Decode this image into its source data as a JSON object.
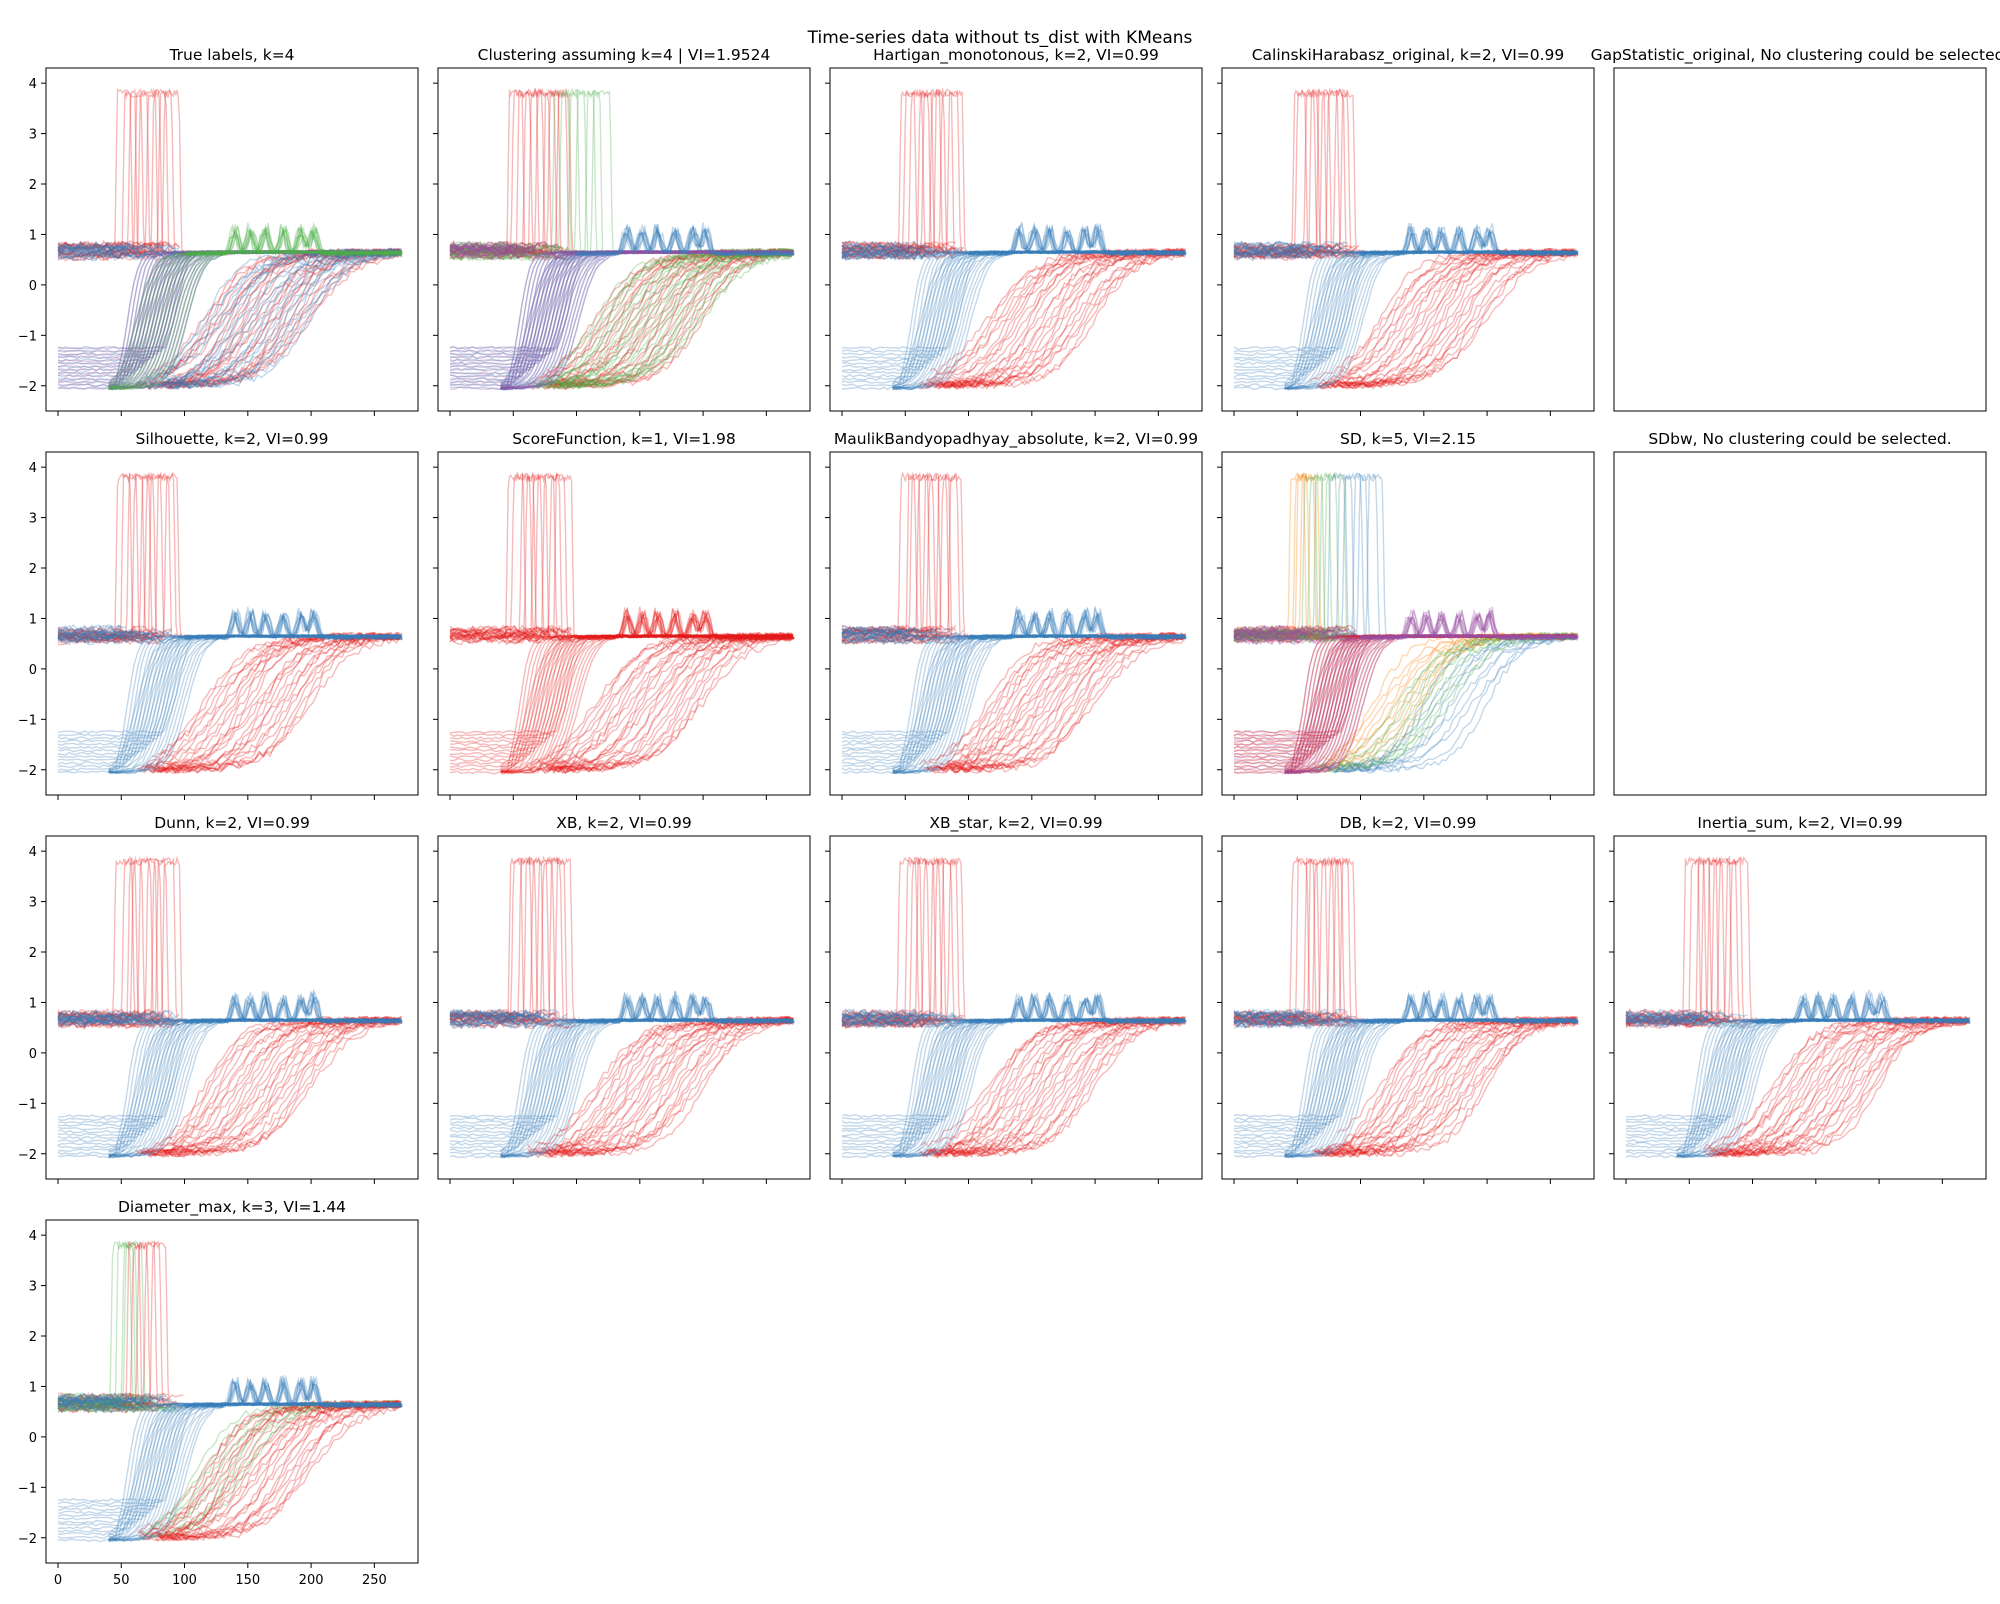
{
  "figure": {
    "suptitle": "Time-series data without ts_dist with KMeans"
  },
  "colors": {
    "red": "#e41a1c",
    "blue": "#377eb8",
    "green": "#4daf4a",
    "purple": "#984ea3",
    "orange": "#ff7f00"
  },
  "chart_data": [
    {
      "type": "line",
      "title": "True labels, k=4",
      "xlim": [
        0,
        275
      ],
      "ylim": [
        -2.5,
        4.3
      ],
      "xticks": [
        "0",
        "50",
        "100",
        "150",
        "200",
        "250"
      ],
      "yticks": [
        "-2",
        "-1",
        "0",
        "1",
        "2",
        "3",
        "4"
      ],
      "show_ylabels": true,
      "show_xlabels": false,
      "series": [
        {
          "role": "flat",
          "color": "red"
        },
        {
          "role": "spikes",
          "color": "red"
        },
        {
          "role": "slow",
          "color": "red"
        },
        {
          "role": "slow",
          "color": "blue"
        },
        {
          "role": "steps",
          "color": "blue"
        },
        {
          "role": "steps",
          "color": "purple"
        },
        {
          "role": "fast",
          "color": "blue"
        },
        {
          "role": "fast",
          "color": "purple"
        },
        {
          "role": "fast",
          "color": "green"
        },
        {
          "role": "flat",
          "color": "blue"
        },
        {
          "role": "bumps",
          "color": "green"
        }
      ]
    },
    {
      "type": "line",
      "title": "Clustering assuming k=4 | VI=1.9524",
      "xlim": [
        0,
        275
      ],
      "ylim": [
        -2.5,
        4.3
      ],
      "xticks": [
        "0",
        "50",
        "100",
        "150",
        "200",
        "250"
      ],
      "yticks": [
        "-2",
        "-1",
        "0",
        "1",
        "2",
        "3",
        "4"
      ],
      "show_ylabels": false,
      "show_xlabels": false,
      "series": [
        {
          "role": "flat",
          "color": "red"
        },
        {
          "role": "flat",
          "color": "green"
        },
        {
          "role": "spikes",
          "color": "red"
        },
        {
          "role": "spikes2",
          "color": "green"
        },
        {
          "role": "slow",
          "color": "red"
        },
        {
          "role": "slow",
          "color": "green"
        },
        {
          "role": "steps",
          "color": "blue"
        },
        {
          "role": "steps",
          "color": "purple"
        },
        {
          "role": "fast",
          "color": "blue"
        },
        {
          "role": "fast",
          "color": "purple"
        },
        {
          "role": "flat",
          "color": "purple"
        },
        {
          "role": "bumps",
          "color": "blue"
        }
      ]
    },
    {
      "type": "line",
      "title": "Hartigan_monotonous, k=2, VI=0.99",
      "xlim": [
        0,
        275
      ],
      "ylim": [
        -2.5,
        4.3
      ],
      "xticks": [
        "0",
        "50",
        "100",
        "150",
        "200",
        "250"
      ],
      "yticks": [
        "-2",
        "-1",
        "0",
        "1",
        "2",
        "3",
        "4"
      ],
      "show_ylabels": false,
      "show_xlabels": false,
      "series": [
        {
          "role": "flat",
          "color": "red"
        },
        {
          "role": "spikes",
          "color": "red"
        },
        {
          "role": "slow",
          "color": "red"
        },
        {
          "role": "steps",
          "color": "blue"
        },
        {
          "role": "fast",
          "color": "blue"
        },
        {
          "role": "flat",
          "color": "blue"
        },
        {
          "role": "bumps",
          "color": "blue"
        }
      ]
    },
    {
      "type": "line",
      "title": "CalinskiHarabasz_original, k=2, VI=0.99",
      "xlim": [
        0,
        275
      ],
      "ylim": [
        -2.5,
        4.3
      ],
      "xticks": [
        "0",
        "50",
        "100",
        "150",
        "200",
        "250"
      ],
      "yticks": [
        "-2",
        "-1",
        "0",
        "1",
        "2",
        "3",
        "4"
      ],
      "show_ylabels": false,
      "show_xlabels": false,
      "series": [
        {
          "role": "flat",
          "color": "red"
        },
        {
          "role": "spikes",
          "color": "red"
        },
        {
          "role": "slow",
          "color": "red"
        },
        {
          "role": "steps",
          "color": "blue"
        },
        {
          "role": "fast",
          "color": "blue"
        },
        {
          "role": "flat",
          "color": "blue"
        },
        {
          "role": "bumps",
          "color": "blue"
        }
      ]
    },
    {
      "type": "line",
      "title": "GapStatistic_original, No clustering could be selected.",
      "empty": true,
      "series": []
    },
    {
      "type": "line",
      "title": "Silhouette, k=2, VI=0.99",
      "xlim": [
        0,
        275
      ],
      "ylim": [
        -2.5,
        4.3
      ],
      "xticks": [
        "0",
        "50",
        "100",
        "150",
        "200",
        "250"
      ],
      "yticks": [
        "-2",
        "-1",
        "0",
        "1",
        "2",
        "3",
        "4"
      ],
      "show_ylabels": true,
      "show_xlabels": false,
      "series": [
        {
          "role": "flat",
          "color": "red"
        },
        {
          "role": "spikes",
          "color": "red"
        },
        {
          "role": "slow",
          "color": "red"
        },
        {
          "role": "steps",
          "color": "blue"
        },
        {
          "role": "fast",
          "color": "blue"
        },
        {
          "role": "flat",
          "color": "blue"
        },
        {
          "role": "bumps",
          "color": "blue"
        }
      ]
    },
    {
      "type": "line",
      "title": "ScoreFunction, k=1, VI=1.98",
      "xlim": [
        0,
        275
      ],
      "ylim": [
        -2.5,
        4.3
      ],
      "xticks": [
        "0",
        "50",
        "100",
        "150",
        "200",
        "250"
      ],
      "yticks": [
        "-2",
        "-1",
        "0",
        "1",
        "2",
        "3",
        "4"
      ],
      "show_ylabels": false,
      "show_xlabels": false,
      "series": [
        {
          "role": "flat",
          "color": "red"
        },
        {
          "role": "spikes",
          "color": "red"
        },
        {
          "role": "slow",
          "color": "red"
        },
        {
          "role": "steps",
          "color": "red"
        },
        {
          "role": "fast",
          "color": "red"
        },
        {
          "role": "bumps",
          "color": "red"
        }
      ]
    },
    {
      "type": "line",
      "title": "MaulikBandyopadhyay_absolute, k=2, VI=0.99",
      "xlim": [
        0,
        275
      ],
      "ylim": [
        -2.5,
        4.3
      ],
      "xticks": [
        "0",
        "50",
        "100",
        "150",
        "200",
        "250"
      ],
      "yticks": [
        "-2",
        "-1",
        "0",
        "1",
        "2",
        "3",
        "4"
      ],
      "show_ylabels": false,
      "show_xlabels": false,
      "series": [
        {
          "role": "flat",
          "color": "red"
        },
        {
          "role": "spikes",
          "color": "red"
        },
        {
          "role": "slow",
          "color": "red"
        },
        {
          "role": "steps",
          "color": "blue"
        },
        {
          "role": "fast",
          "color": "blue"
        },
        {
          "role": "flat",
          "color": "blue"
        },
        {
          "role": "bumps",
          "color": "blue"
        }
      ]
    },
    {
      "type": "line",
      "title": "SD, k=5, VI=2.15",
      "xlim": [
        0,
        275
      ],
      "ylim": [
        -2.5,
        4.3
      ],
      "xticks": [
        "0",
        "50",
        "100",
        "150",
        "200",
        "250"
      ],
      "yticks": [
        "-2",
        "-1",
        "0",
        "1",
        "2",
        "3",
        "4"
      ],
      "show_ylabels": false,
      "show_xlabels": false,
      "series": [
        {
          "role": "flat",
          "color": "red"
        },
        {
          "role": "flat",
          "color": "green"
        },
        {
          "role": "spikes_a",
          "color": "orange"
        },
        {
          "role": "spikes_b",
          "color": "green"
        },
        {
          "role": "spikes_c",
          "color": "blue"
        },
        {
          "role": "slow_a",
          "color": "orange"
        },
        {
          "role": "slow_b",
          "color": "green"
        },
        {
          "role": "slow_c",
          "color": "blue"
        },
        {
          "role": "steps",
          "color": "purple"
        },
        {
          "role": "steps",
          "color": "red"
        },
        {
          "role": "fast",
          "color": "red"
        },
        {
          "role": "fast",
          "color": "purple"
        },
        {
          "role": "flat",
          "color": "purple"
        },
        {
          "role": "bumps",
          "color": "purple"
        }
      ]
    },
    {
      "type": "line",
      "title": "SDbw, No clustering could be selected.",
      "empty": true,
      "series": []
    },
    {
      "type": "line",
      "title": "Dunn, k=2, VI=0.99",
      "xlim": [
        0,
        275
      ],
      "ylim": [
        -2.5,
        4.3
      ],
      "xticks": [
        "0",
        "50",
        "100",
        "150",
        "200",
        "250"
      ],
      "yticks": [
        "-2",
        "-1",
        "0",
        "1",
        "2",
        "3",
        "4"
      ],
      "show_ylabels": true,
      "show_xlabels": false,
      "series": [
        {
          "role": "flat",
          "color": "red"
        },
        {
          "role": "spikes",
          "color": "red"
        },
        {
          "role": "slow",
          "color": "red"
        },
        {
          "role": "steps",
          "color": "blue"
        },
        {
          "role": "fast",
          "color": "blue"
        },
        {
          "role": "flat",
          "color": "blue"
        },
        {
          "role": "bumps",
          "color": "blue"
        }
      ]
    },
    {
      "type": "line",
      "title": "XB, k=2, VI=0.99",
      "xlim": [
        0,
        275
      ],
      "ylim": [
        -2.5,
        4.3
      ],
      "xticks": [
        "0",
        "50",
        "100",
        "150",
        "200",
        "250"
      ],
      "yticks": [
        "-2",
        "-1",
        "0",
        "1",
        "2",
        "3",
        "4"
      ],
      "show_ylabels": false,
      "show_xlabels": false,
      "series": [
        {
          "role": "flat",
          "color": "red"
        },
        {
          "role": "spikes",
          "color": "red"
        },
        {
          "role": "slow",
          "color": "red"
        },
        {
          "role": "steps",
          "color": "blue"
        },
        {
          "role": "fast",
          "color": "blue"
        },
        {
          "role": "flat",
          "color": "blue"
        },
        {
          "role": "bumps",
          "color": "blue"
        }
      ]
    },
    {
      "type": "line",
      "title": "XB_star, k=2, VI=0.99",
      "xlim": [
        0,
        275
      ],
      "ylim": [
        -2.5,
        4.3
      ],
      "xticks": [
        "0",
        "50",
        "100",
        "150",
        "200",
        "250"
      ],
      "yticks": [
        "-2",
        "-1",
        "0",
        "1",
        "2",
        "3",
        "4"
      ],
      "show_ylabels": false,
      "show_xlabels": false,
      "series": [
        {
          "role": "flat",
          "color": "red"
        },
        {
          "role": "spikes",
          "color": "red"
        },
        {
          "role": "slow",
          "color": "red"
        },
        {
          "role": "steps",
          "color": "blue"
        },
        {
          "role": "fast",
          "color": "blue"
        },
        {
          "role": "flat",
          "color": "blue"
        },
        {
          "role": "bumps",
          "color": "blue"
        }
      ]
    },
    {
      "type": "line",
      "title": "DB, k=2, VI=0.99",
      "xlim": [
        0,
        275
      ],
      "ylim": [
        -2.5,
        4.3
      ],
      "xticks": [
        "0",
        "50",
        "100",
        "150",
        "200",
        "250"
      ],
      "yticks": [
        "-2",
        "-1",
        "0",
        "1",
        "2",
        "3",
        "4"
      ],
      "show_ylabels": false,
      "show_xlabels": false,
      "series": [
        {
          "role": "flat",
          "color": "red"
        },
        {
          "role": "spikes",
          "color": "red"
        },
        {
          "role": "slow",
          "color": "red"
        },
        {
          "role": "steps",
          "color": "blue"
        },
        {
          "role": "fast",
          "color": "blue"
        },
        {
          "role": "flat",
          "color": "blue"
        },
        {
          "role": "bumps",
          "color": "blue"
        }
      ]
    },
    {
      "type": "line",
      "title": "Inertia_sum, k=2, VI=0.99",
      "xlim": [
        0,
        275
      ],
      "ylim": [
        -2.5,
        4.3
      ],
      "xticks": [
        "0",
        "50",
        "100",
        "150",
        "200",
        "250"
      ],
      "yticks": [
        "-2",
        "-1",
        "0",
        "1",
        "2",
        "3",
        "4"
      ],
      "show_ylabels": false,
      "show_xlabels": false,
      "series": [
        {
          "role": "flat",
          "color": "red"
        },
        {
          "role": "spikes",
          "color": "red"
        },
        {
          "role": "slow",
          "color": "red"
        },
        {
          "role": "steps",
          "color": "blue"
        },
        {
          "role": "fast",
          "color": "blue"
        },
        {
          "role": "flat",
          "color": "blue"
        },
        {
          "role": "bumps",
          "color": "blue"
        }
      ]
    },
    {
      "type": "line",
      "title": "Diameter_max, k=3, VI=1.44",
      "xlim": [
        0,
        275
      ],
      "ylim": [
        -2.5,
        4.3
      ],
      "xticks": [
        "0",
        "50",
        "100",
        "150",
        "200",
        "250"
      ],
      "yticks": [
        "-2",
        "-1",
        "0",
        "1",
        "2",
        "3",
        "4"
      ],
      "show_ylabels": true,
      "show_xlabels": true,
      "series": [
        {
          "role": "flat",
          "color": "red"
        },
        {
          "role": "flat",
          "color": "green"
        },
        {
          "role": "spikes_a",
          "color": "green"
        },
        {
          "role": "spikes_b",
          "color": "red"
        },
        {
          "role": "slow_a",
          "color": "green"
        },
        {
          "role": "slow",
          "color": "red"
        },
        {
          "role": "steps",
          "color": "blue"
        },
        {
          "role": "fast",
          "color": "blue"
        },
        {
          "role": "flat",
          "color": "blue"
        },
        {
          "role": "bumps",
          "color": "blue"
        }
      ]
    }
  ]
}
